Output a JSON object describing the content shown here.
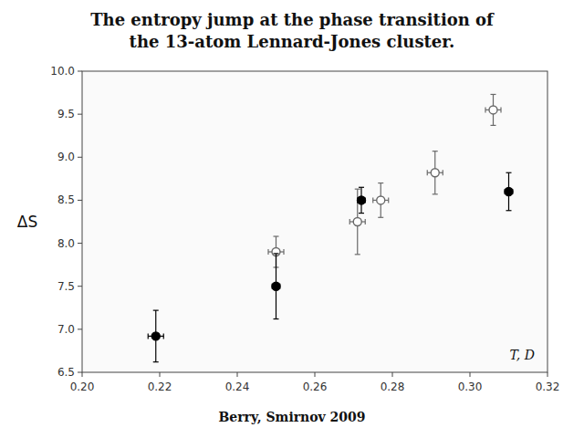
{
  "chart_data": {
    "type": "scatter",
    "title": [
      "The entropy jump at the phase transition of",
      "the 13-atom Lennard-Jones cluster."
    ],
    "subtitle": "Berry, Smirnov 2009",
    "x_label": "T, D",
    "y_label": "ΔS",
    "xlim": [
      0.2,
      0.32
    ],
    "ylim": [
      6.5,
      10.0
    ],
    "xticks": [
      {
        "value": 0.2,
        "label": "0.20"
      },
      0.22,
      0.24,
      0.26,
      0.28,
      {
        "value": 0.3,
        "label": "0.30"
      },
      0.32
    ],
    "yticks": [
      6.5,
      {
        "value": 7.0,
        "label": "7.0"
      },
      7.5,
      {
        "value": 8.0,
        "label": "8.0"
      },
      8.5,
      {
        "value": 9.0,
        "label": "9.0"
      },
      9.5,
      {
        "value": 10.0,
        "label": "10.0"
      }
    ],
    "grid": false,
    "series": [
      {
        "color": "black",
        "marker": "filled-circle",
        "x": [
          0.219,
          0.25,
          0.272,
          0.31
        ],
        "values": [
          6.92,
          7.5,
          8.5,
          8.6
        ],
        "xerr": [
          0.002,
          0.001,
          0.001,
          0.001
        ],
        "yerr": [
          0.3,
          0.38,
          0.15,
          0.22
        ]
      },
      {
        "color": "dimgray",
        "marker": "open-circle",
        "x": [
          0.25,
          0.271,
          0.277,
          0.291,
          0.306
        ],
        "values": [
          7.9,
          8.25,
          8.5,
          8.82,
          9.55
        ],
        "xerr": [
          0.002,
          0.002,
          0.002,
          0.002,
          0.002
        ],
        "yerr": [
          0.18,
          0.38,
          0.2,
          0.25,
          0.18
        ]
      }
    ]
  }
}
